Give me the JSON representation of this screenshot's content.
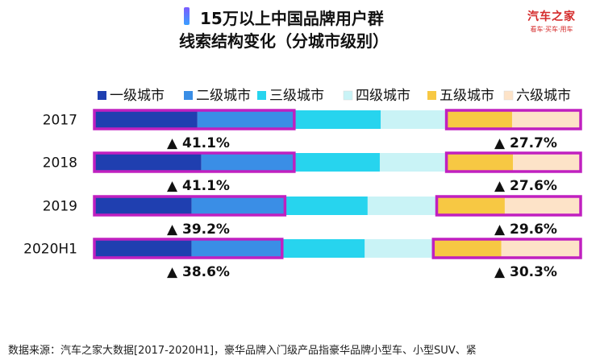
{
  "title": {
    "line1": "15万以上中国品牌用户群",
    "line2": "线索结构变化（分城市级别）"
  },
  "brand": {
    "name": "汽车之家",
    "tagline": "看车·买车·用车"
  },
  "footer": {
    "source": "数据来源：汽车之家大数据[2017-2020H1]，豪华品牌入门级产品指豪华品牌小型车、小型SUV、紧"
  },
  "chart_data": {
    "type": "bar",
    "orientation": "horizontal",
    "stacked": "100%",
    "categories": [
      "2017",
      "2018",
      "2019",
      "2020H1"
    ],
    "series": [
      {
        "name": "一级城市",
        "color": "#1f3fb0",
        "values": [
          21.2,
          22.0,
          20.0,
          20.0
        ]
      },
      {
        "name": "二级城市",
        "color": "#3a8ee6",
        "values": [
          19.9,
          19.1,
          19.2,
          18.6
        ]
      },
      {
        "name": "三级城市",
        "color": "#27d4ee",
        "values": [
          17.8,
          17.6,
          17.0,
          17.0
        ]
      },
      {
        "name": "四级城市",
        "color": "#c9f3f6",
        "values": [
          13.5,
          13.7,
          14.2,
          14.1
        ]
      },
      {
        "name": "五级城市",
        "color": "#f7c843",
        "values": [
          13.5,
          13.7,
          14.0,
          14.0
        ]
      },
      {
        "name": "六级城市",
        "color": "#fde3c8",
        "values": [
          14.1,
          13.9,
          15.6,
          16.3
        ]
      }
    ],
    "highlight_groups": [
      {
        "label": "一级城市+二级城市",
        "values": [
          "41.1%",
          "41.1%",
          "39.2%",
          "38.6%"
        ]
      },
      {
        "label": "五级城市+六级城市",
        "values": [
          "27.7%",
          "27.6%",
          "29.6%",
          "30.3%"
        ]
      }
    ],
    "annotation_marker": "▲",
    "highlight_color": "#c020c0",
    "legend_position": "top",
    "grid": false
  }
}
